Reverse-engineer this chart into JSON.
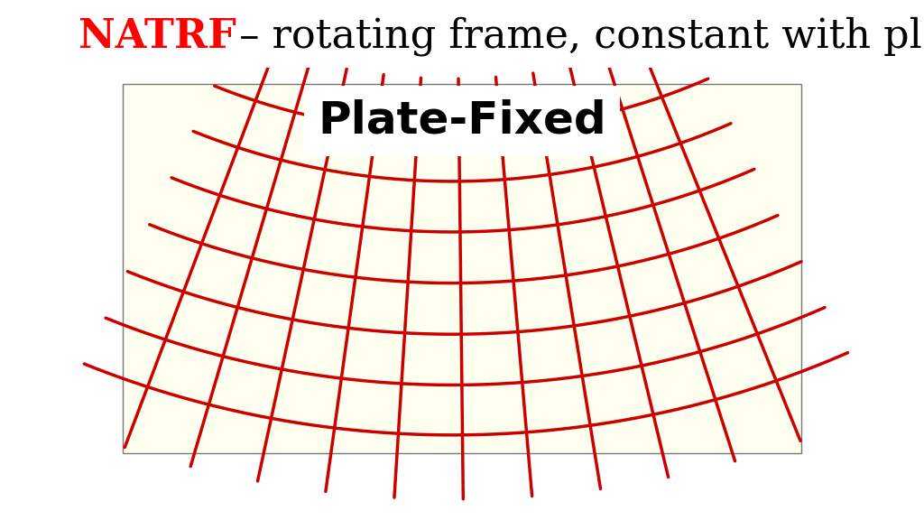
{
  "title_red": "NATRF",
  "title_black": " – rotating frame, constant with plate",
  "subtitle": "Plate-Fixed",
  "bg_color": "#e0e0e0",
  "map_fill": "#fffff0",
  "map_edge": "#777777",
  "grid_color": "#cc0000",
  "grid_linewidth": 2.5,
  "title_fontsize": 32,
  "subtitle_fontsize": 36,
  "n_meridians": 11,
  "n_parallels": 7,
  "lon_min": -130,
  "lon_max": -60,
  "lat_min": 20,
  "lat_max": 55,
  "central_lon": -96,
  "central_lat": 38,
  "std_par1": 29.5,
  "std_par2": 45.5
}
